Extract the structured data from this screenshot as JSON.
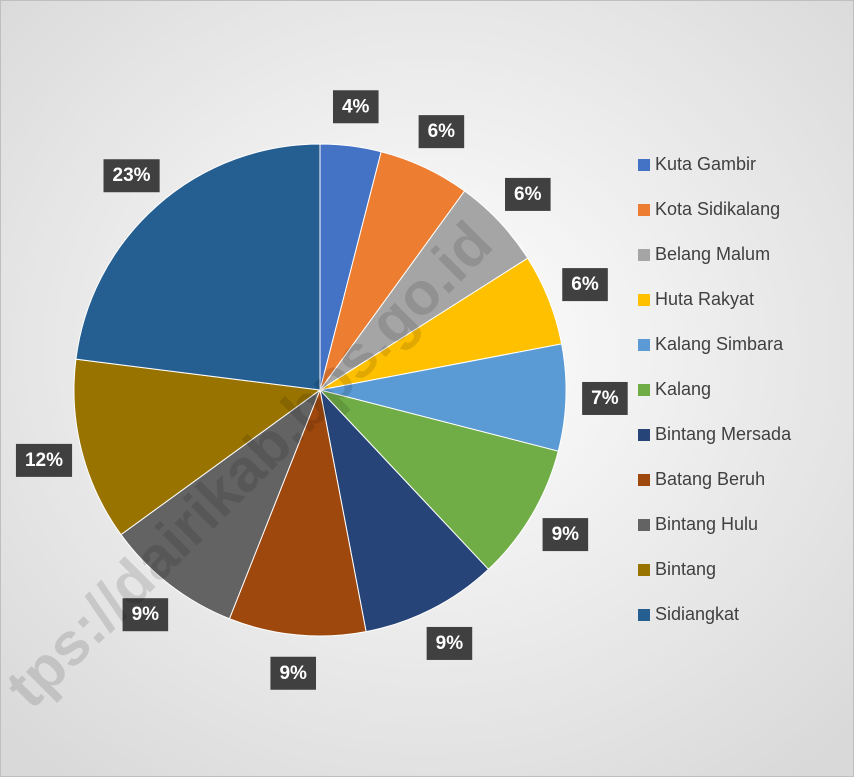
{
  "chart_data": {
    "type": "pie",
    "categories": [
      "Kuta Gambir",
      "Kota Sidikalang",
      "Belang Malum",
      "Huta Rakyat",
      "Kalang Simbara",
      "Kalang",
      "Bintang Mersada",
      "Batang Beruh",
      "Bintang Hulu",
      "Bintang",
      "Sidiangkat"
    ],
    "values": [
      4,
      6,
      6,
      6,
      7,
      9,
      9,
      9,
      9,
      12,
      23
    ],
    "value_labels": [
      "4%",
      "6%",
      "6%",
      "6%",
      "7%",
      "9%",
      "9%",
      "9%",
      "9%",
      "12%",
      "23%"
    ],
    "colors": [
      "#4472c4",
      "#ed7d31",
      "#a5a5a5",
      "#ffc000",
      "#5b9bd5",
      "#70ad47",
      "#264478",
      "#9e480e",
      "#636363",
      "#997300",
      "#255e91"
    ],
    "legend": "right",
    "watermark": "tps://dairikab.bps.go.id"
  }
}
